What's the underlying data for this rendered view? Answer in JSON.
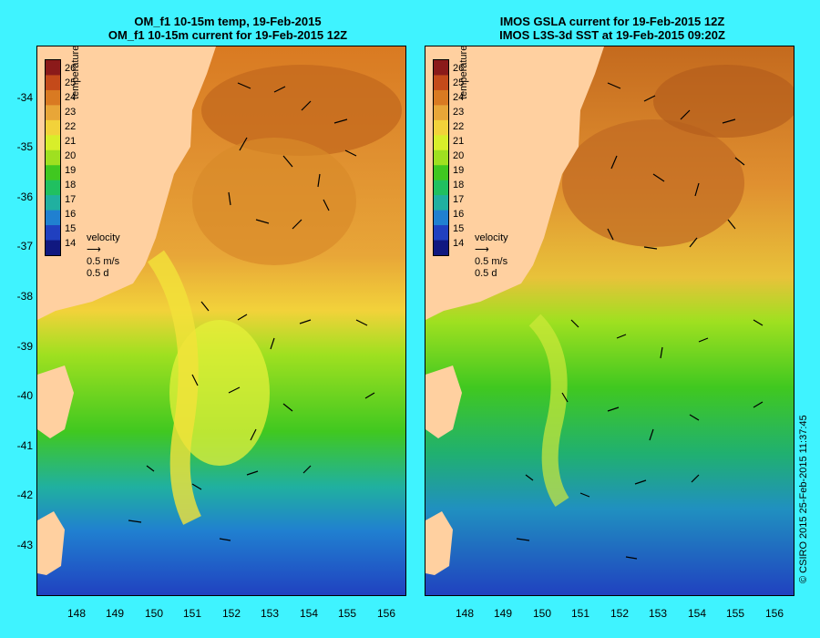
{
  "left_panel": {
    "title_line1": "OM_f1 10-15m temp, 19-Feb-2015",
    "title_line2": "OM_f1 10-15m current for 19-Feb-2015 12Z"
  },
  "right_panel": {
    "title_line1": "IMOS GSLA current for 19-Feb-2015 12Z",
    "title_line2": "IMOS L3S-3d SST at 19-Feb-2015 09:20Z"
  },
  "lat_labels": [
    "-34",
    "-35",
    "-36",
    "-37",
    "-38",
    "-39",
    "-40",
    "-41",
    "-42",
    "-43"
  ],
  "lon_labels": [
    "148",
    "149",
    "150",
    "151",
    "152",
    "153",
    "154",
    "155",
    "156"
  ],
  "colorbar": {
    "label": "temperature (°C)",
    "ticks": [
      "26",
      "25",
      "24",
      "23",
      "22",
      "21",
      "20",
      "19",
      "18",
      "17",
      "16",
      "15",
      "14"
    ],
    "colors": [
      "#8b1a1a",
      "#c44a1a",
      "#d97a22",
      "#e8a638",
      "#f2d23a",
      "#d8ee2a",
      "#9fe020",
      "#40c820",
      "#20c060",
      "#20b0a0",
      "#2080d0",
      "#2040c0",
      "#101880"
    ]
  },
  "velocity_key": {
    "title": "velocity",
    "speed": "0.5 m/s",
    "duration": "0.5 d"
  },
  "credit": "© CSIRO 2015   25-Feb-2015 11:37:45",
  "colors": {
    "background": "#3ff3ff",
    "land": "#ffd0a0"
  }
}
